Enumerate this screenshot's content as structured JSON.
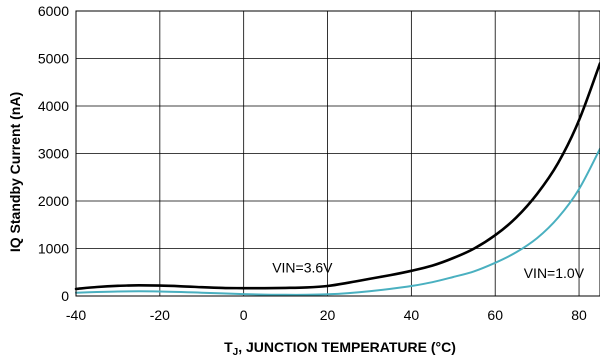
{
  "chart_data": {
    "type": "line",
    "xlabel": "T",
    "xlabel_sub": "J",
    "xlabel_rest": ", JUNCTION TEMPERATURE (°C)",
    "ylabel": "IQ Standby Current (nA)",
    "xlim": [
      -40,
      85
    ],
    "ylim": [
      0,
      6000
    ],
    "x_ticks": [
      -40,
      -20,
      0,
      20,
      40,
      60,
      80
    ],
    "y_ticks": [
      0,
      1000,
      2000,
      3000,
      4000,
      5000,
      6000
    ],
    "grid": true,
    "series": [
      {
        "name": "VIN=3.6V",
        "color": "#000000",
        "x": [
          -40,
          -35,
          -30,
          -25,
          -20,
          -15,
          -10,
          -5,
          0,
          5,
          10,
          15,
          20,
          25,
          30,
          35,
          40,
          45,
          50,
          55,
          60,
          65,
          70,
          75,
          80,
          85
        ],
        "y": [
          150,
          190,
          215,
          225,
          220,
          205,
          185,
          170,
          165,
          165,
          170,
          180,
          210,
          280,
          360,
          440,
          530,
          640,
          800,
          1000,
          1280,
          1650,
          2150,
          2800,
          3700,
          4900
        ]
      },
      {
        "name": "VIN=1.0V",
        "color": "#4ab0c0",
        "x": [
          -40,
          -35,
          -30,
          -25,
          -20,
          -15,
          -10,
          -5,
          0,
          5,
          10,
          15,
          20,
          25,
          30,
          35,
          40,
          45,
          50,
          55,
          60,
          65,
          70,
          75,
          80,
          85
        ],
        "y": [
          70,
          85,
          95,
          100,
          95,
          85,
          70,
          55,
          40,
          30,
          25,
          25,
          35,
          60,
          100,
          150,
          210,
          290,
          400,
          520,
          700,
          920,
          1220,
          1650,
          2250,
          3100
        ]
      }
    ],
    "annotations": [
      {
        "text": "VIN=3.6V",
        "x": 14,
        "y": 500
      },
      {
        "text": "VIN=1.0V",
        "x": 74,
        "y": 380
      }
    ]
  }
}
